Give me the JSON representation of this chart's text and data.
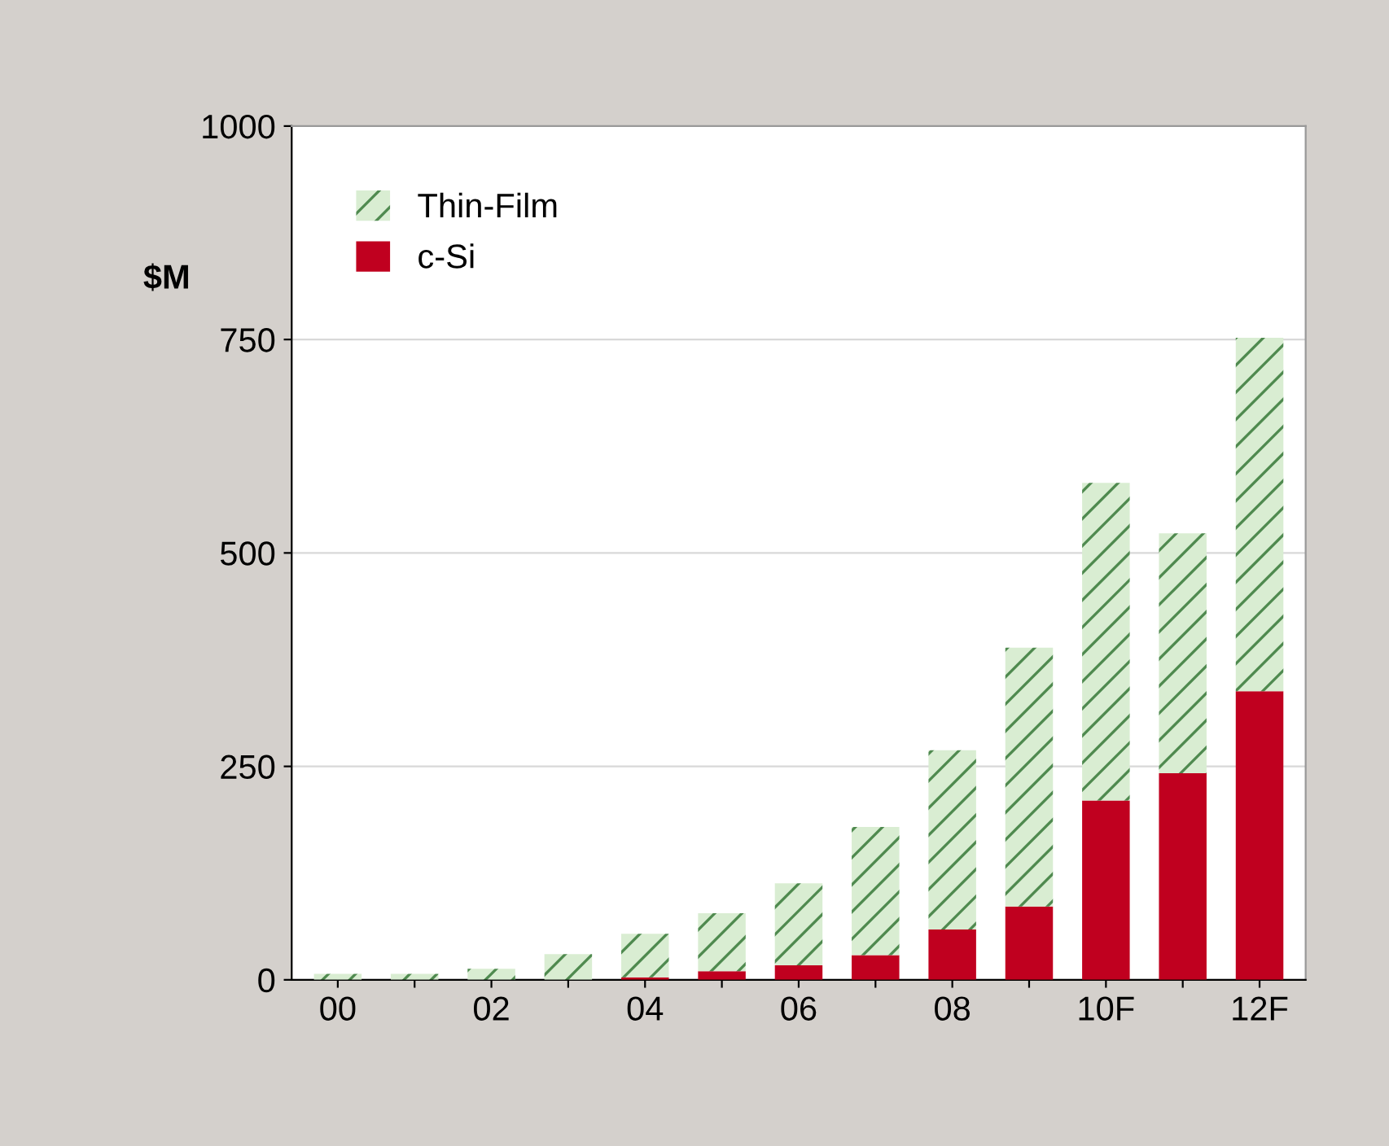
{
  "chart_data": {
    "type": "bar",
    "stacked": true,
    "ylabel": "$M",
    "categories": [
      "00",
      null,
      "02",
      null,
      "04",
      null,
      "06",
      null,
      "08",
      null,
      "10F",
      null,
      "12F"
    ],
    "series": [
      {
        "name": "c-Si",
        "color": "#c0001f",
        "values": [
          0,
          0,
          0,
          null,
          3,
          10,
          17,
          29,
          59,
          86,
          210,
          242,
          338
        ]
      },
      {
        "name": "Thin-Film",
        "color": "#d9edd2",
        "values": [
          7,
          7,
          13,
          30,
          51,
          68,
          96,
          150,
          210,
          303,
          372,
          281,
          414
        ]
      }
    ],
    "ylim": [
      0,
      1000
    ],
    "yticks": [
      0,
      250,
      500,
      750,
      1000
    ],
    "grid": "y",
    "legend": "top left"
  }
}
